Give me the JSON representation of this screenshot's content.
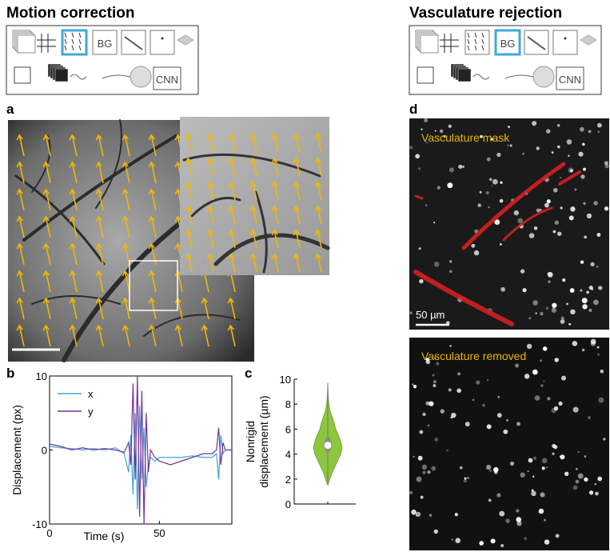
{
  "headers": [
    "Motion correction",
    "Vasculature rejection"
  ],
  "panel_labels": [
    "a",
    "b",
    "c",
    "d"
  ],
  "pipeline": {
    "bg": "BG",
    "cnn": "CNN"
  },
  "image_labels": {
    "mask": "Vasculature mask",
    "removed": "Vasculature removed",
    "scale": "50 µm"
  },
  "chart_data": [
    {
      "type": "line",
      "xlabel": "Time (s)",
      "ylabel": "Displacement (px)",
      "x": [
        0,
        5,
        10,
        15,
        20,
        25,
        30,
        34,
        36,
        37,
        38,
        39,
        40,
        41,
        42,
        43,
        44,
        45,
        46,
        48,
        50,
        55,
        60,
        65,
        70,
        74,
        76,
        77,
        78,
        79,
        80,
        83
      ],
      "series": [
        {
          "name": "x",
          "color": "#3aa8dc",
          "values": [
            0.5,
            0.3,
            0.2,
            0,
            0.2,
            0,
            0.3,
            -0.5,
            -3,
            2,
            -6,
            5,
            -8,
            6,
            -4,
            3,
            -5,
            -2,
            -1,
            -1.5,
            -1,
            -1,
            -1,
            -0.8,
            -1,
            -1,
            -0.5,
            -4,
            2,
            -0.5,
            0,
            0
          ]
        },
        {
          "name": "y",
          "color": "#7b3294",
          "values": [
            0.8,
            0.5,
            0,
            0.3,
            0,
            0.2,
            0,
            -0.3,
            1,
            -2,
            9,
            -4,
            10,
            -9,
            8,
            -10,
            5,
            -3,
            0,
            -1,
            -1.5,
            -2,
            -1.5,
            -1,
            -0.5,
            -0.5,
            0,
            3,
            -2,
            1,
            0,
            0
          ]
        }
      ],
      "xlim": [
        0,
        83
      ],
      "xticks": [
        0,
        50
      ],
      "ylim": [
        -10,
        10
      ],
      "yticks": [
        -10,
        0,
        10
      ]
    },
    {
      "type": "violin",
      "ylabel": [
        "Nonrigid",
        "displacement (µm)"
      ],
      "color": "#8dc63f",
      "kde": {
        "y": [
          1.5,
          2,
          2.5,
          3,
          3.5,
          4,
          4.5,
          5,
          5.5,
          6,
          6.5,
          7,
          7.5,
          8,
          8.5,
          9,
          9.7
        ],
        "w": [
          0,
          0.15,
          0.3,
          0.5,
          0.7,
          0.9,
          1,
          0.9,
          0.75,
          0.55,
          0.45,
          0.3,
          0.15,
          0.08,
          0.04,
          0.02,
          0
        ]
      },
      "min": 1.5,
      "q1": 4.2,
      "median": 4.7,
      "q3": 5.3,
      "max": 9.7,
      "ylim": [
        0,
        10
      ],
      "yticks": [
        0,
        2,
        4,
        6,
        8,
        10
      ]
    }
  ]
}
